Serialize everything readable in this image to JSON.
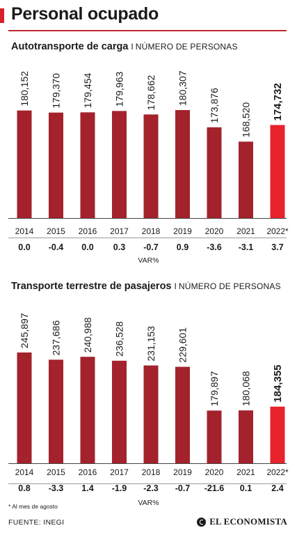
{
  "title": "Personal ocupado",
  "var_label": "VAR%",
  "footnote": "* Al mes de agosto",
  "source": "FUENTE: INEGI",
  "logo_text": "EL ECONOMISTA",
  "colors": {
    "bar": "#a3222c",
    "highlight": "#e8232b",
    "accent": "#d7202b"
  },
  "chart_data": [
    {
      "type": "bar",
      "title": "Autotransporte de carga",
      "title_separator": "I",
      "unit": "NÚMERO DE PERSONAS",
      "categories": [
        "2014",
        "2015",
        "2016",
        "2017",
        "2018",
        "2019",
        "2020",
        "2021",
        "2022*"
      ],
      "values": [
        180152,
        179370,
        179454,
        179963,
        178662,
        180307,
        173876,
        168520,
        174732
      ],
      "value_labels": [
        "180,152",
        "179,370",
        "179,454",
        "179,963",
        "178,662",
        "180,307",
        "173,876",
        "168,520",
        "174,732"
      ],
      "var_pct": [
        "0.0",
        "-0.4",
        "0.0",
        "0.3",
        "-0.7",
        "0.9",
        "-3.6",
        "-3.1",
        "3.7"
      ],
      "highlight_index": 8
    },
    {
      "type": "bar",
      "title": "Transporte terrestre de pasajeros",
      "title_separator": "I",
      "unit": "NÚMERO DE PERSONAS",
      "categories": [
        "2014",
        "2015",
        "2016",
        "2017",
        "2018",
        "2019",
        "2020",
        "2021",
        "2022*"
      ],
      "values": [
        245897,
        237686,
        240988,
        236528,
        231153,
        229601,
        179897,
        180068,
        184355
      ],
      "value_labels": [
        "245,897",
        "237,686",
        "240,988",
        "236,528",
        "231,153",
        "229,601",
        "179,897",
        "180,068",
        "184,355"
      ],
      "var_pct": [
        "0.8",
        "-3.3",
        "1.4",
        "-1.9",
        "-2.3",
        "-0.7",
        "-21.6",
        "0.1",
        "2.4"
      ],
      "highlight_index": 8
    }
  ]
}
